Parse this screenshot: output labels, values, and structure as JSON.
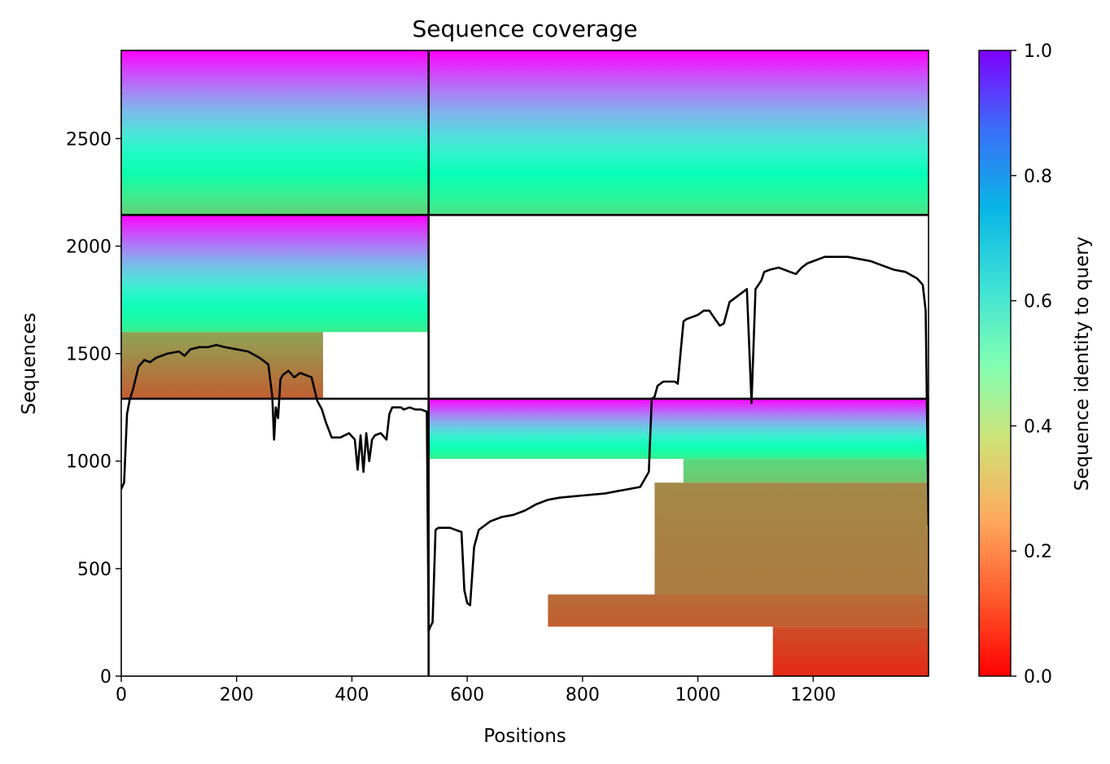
{
  "chart_data": {
    "type": "heatmap",
    "title": "Sequence coverage",
    "xlabel": "Positions",
    "ylabel": "Sequences",
    "xlim": [
      0,
      1400
    ],
    "ylim": [
      0,
      2910
    ],
    "xticks": [
      0,
      200,
      400,
      600,
      800,
      1000,
      1200
    ],
    "yticks": [
      0,
      500,
      1000,
      1500,
      2000,
      2500
    ],
    "colorbar": {
      "label": "Sequence identity to query",
      "range": [
        0.0,
        1.0
      ],
      "ticks": [
        0.0,
        0.2,
        0.4,
        0.6,
        0.8,
        1.0
      ],
      "tick_labels": [
        "0.0",
        "0.2",
        "0.4",
        "0.6",
        "0.8",
        "1.0"
      ],
      "colormap": "rainbow_r"
    },
    "domain_boundaries": {
      "vertical_x": 533,
      "horizontal_y": [
        1290,
        2145
      ]
    },
    "coverage_blocks": [
      {
        "x": [
          0,
          533
        ],
        "y": [
          2145,
          2910
        ],
        "identity_top": 1.0,
        "identity_bottom": 0.3
      },
      {
        "x": [
          533,
          1400
        ],
        "y": [
          2145,
          2910
        ],
        "identity_top": 1.0,
        "identity_bottom": 0.35
      },
      {
        "x": [
          0,
          533
        ],
        "y": [
          1600,
          2145
        ],
        "identity_top": 1.0,
        "identity_bottom": 0.38
      },
      {
        "x": [
          0,
          350
        ],
        "y": [
          1290,
          1600
        ],
        "identity_top": 0.22,
        "identity_bottom": 0.12
      },
      {
        "x": [
          533,
          1400
        ],
        "y": [
          1010,
          1290
        ],
        "identity_top": 1.0,
        "identity_bottom": 0.38
      },
      {
        "x": [
          975,
          1400
        ],
        "y": [
          900,
          1010
        ],
        "identity_top": 0.33,
        "identity_bottom": 0.28
      },
      {
        "x": [
          925,
          1400
        ],
        "y": [
          380,
          900
        ],
        "identity_top": 0.18,
        "identity_bottom": 0.16
      },
      {
        "x": [
          740,
          1400
        ],
        "y": [
          230,
          380
        ],
        "identity_top": 0.14,
        "identity_bottom": 0.12
      },
      {
        "x": [
          1130,
          1400
        ],
        "y": [
          0,
          230
        ],
        "identity_top": 0.1,
        "identity_bottom": 0.05
      }
    ],
    "series": [
      {
        "type": "line",
        "x": [
          0,
          5,
          10,
          15,
          20,
          30,
          40,
          50,
          60,
          80,
          100,
          110,
          120,
          135,
          150,
          165,
          180,
          200,
          220,
          240,
          255,
          262,
          265,
          268,
          272,
          276,
          280,
          290,
          300,
          310,
          320,
          330,
          340,
          348,
          355,
          365,
          380,
          395,
          405,
          410,
          415,
          420,
          425,
          430,
          435,
          440,
          450,
          460,
          465,
          470,
          480,
          485,
          490,
          500,
          510,
          520,
          530,
          533,
          536,
          540,
          545,
          550,
          560,
          570,
          580,
          590,
          595,
          600,
          605,
          612,
          620,
          630,
          640,
          660,
          680,
          700,
          720,
          740,
          760,
          780,
          800,
          820,
          840,
          860,
          880,
          900,
          915,
          920,
          925,
          930,
          940,
          950,
          960,
          965,
          975,
          980,
          1000,
          1010,
          1020,
          1030,
          1038,
          1045,
          1055,
          1065,
          1075,
          1085,
          1093,
          1100,
          1105,
          1110,
          1115,
          1125,
          1140,
          1160,
          1170,
          1180,
          1190,
          1200,
          1210,
          1220,
          1240,
          1260,
          1280,
          1300,
          1320,
          1340,
          1360,
          1380,
          1390,
          1395,
          1400
        ],
        "y": [
          870,
          900,
          1220,
          1290,
          1330,
          1440,
          1470,
          1460,
          1480,
          1500,
          1510,
          1490,
          1520,
          1530,
          1530,
          1540,
          1530,
          1520,
          1510,
          1480,
          1450,
          1300,
          1100,
          1250,
          1200,
          1380,
          1400,
          1420,
          1390,
          1410,
          1400,
          1390,
          1280,
          1240,
          1180,
          1110,
          1110,
          1130,
          1100,
          960,
          1120,
          950,
          1130,
          1000,
          1100,
          1120,
          1130,
          1100,
          1220,
          1250,
          1250,
          1250,
          1240,
          1250,
          1240,
          1240,
          1230,
          210,
          230,
          250,
          680,
          690,
          690,
          690,
          680,
          670,
          400,
          340,
          330,
          600,
          680,
          700,
          720,
          740,
          750,
          770,
          800,
          820,
          830,
          835,
          840,
          845,
          850,
          860,
          870,
          880,
          950,
          1290,
          1300,
          1350,
          1370,
          1370,
          1370,
          1360,
          1650,
          1660,
          1680,
          1700,
          1700,
          1660,
          1630,
          1640,
          1740,
          1760,
          1780,
          1800,
          1270,
          1800,
          1820,
          1840,
          1880,
          1890,
          1900,
          1880,
          1870,
          1900,
          1920,
          1930,
          1940,
          1950,
          1950,
          1950,
          1940,
          1930,
          1910,
          1890,
          1880,
          1850,
          1820,
          1700,
          700
        ]
      }
    ]
  }
}
